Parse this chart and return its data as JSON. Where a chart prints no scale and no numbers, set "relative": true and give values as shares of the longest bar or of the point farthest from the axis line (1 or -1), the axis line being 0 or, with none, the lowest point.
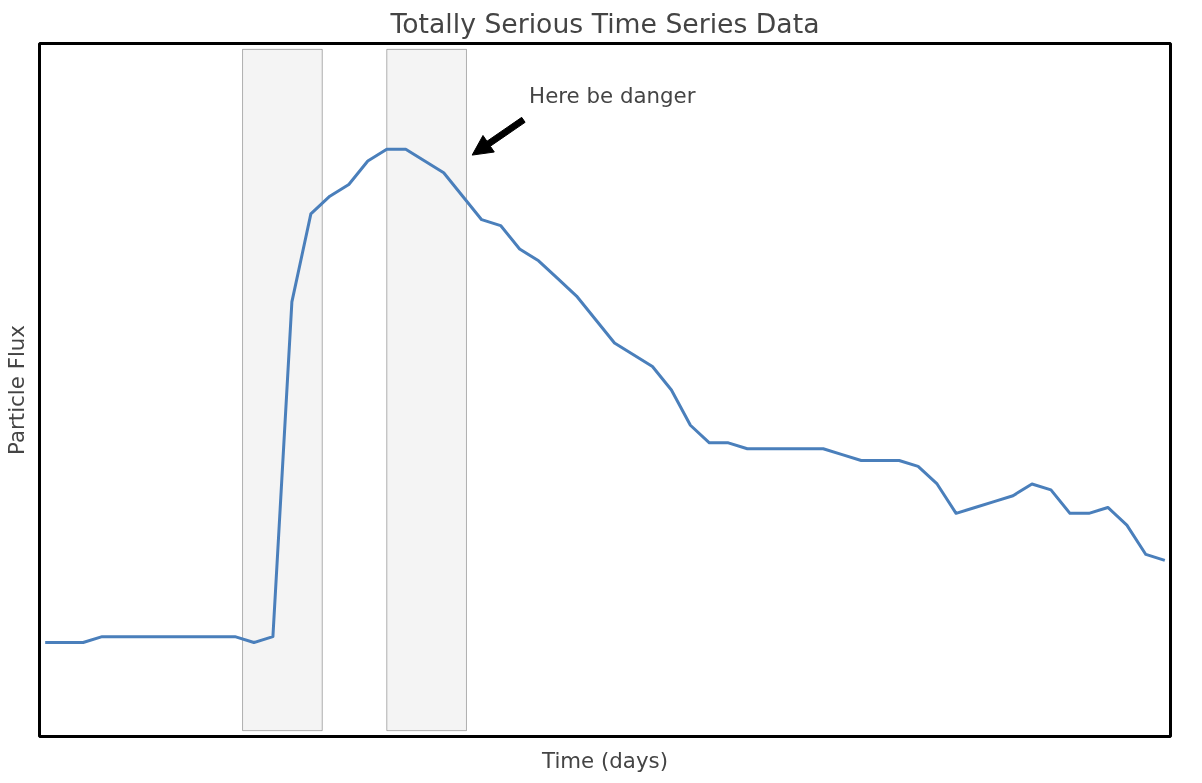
{
  "chart_data": {
    "type": "line",
    "title": "Totally Serious Time Series Data",
    "xlabel": "Time (days)",
    "ylabel": "Particle Flux",
    "relative": true,
    "tick_labels": false,
    "grid": false,
    "marker": "none",
    "line_style": "solid",
    "categories": [
      null,
      null,
      null,
      null,
      null,
      null,
      null,
      null,
      null,
      null,
      null,
      null,
      null,
      null,
      null,
      null,
      null,
      null,
      null,
      null,
      null,
      null,
      null,
      null,
      null,
      null,
      null,
      null,
      null,
      null,
      null,
      null,
      null,
      null,
      null,
      null,
      null,
      null,
      null,
      null,
      null,
      null,
      null,
      null,
      null,
      null,
      null,
      null,
      null,
      null,
      null,
      null,
      null,
      null,
      null,
      null,
      null,
      null,
      null,
      null
    ],
    "series": [
      {
        "color": "#4a7fbb",
        "values": [
          0.16,
          0.16,
          0.16,
          0.17,
          0.17,
          0.17,
          0.17,
          0.17,
          0.17,
          0.17,
          0.17,
          0.16,
          0.17,
          0.74,
          0.89,
          0.92,
          0.94,
          0.98,
          1.0,
          1.0,
          0.98,
          0.96,
          0.92,
          0.88,
          0.87,
          0.83,
          0.81,
          0.78,
          0.75,
          0.71,
          0.67,
          0.65,
          0.63,
          0.59,
          0.53,
          0.5,
          0.5,
          0.49,
          0.49,
          0.49,
          0.49,
          0.49,
          0.48,
          0.47,
          0.47,
          0.47,
          0.46,
          0.43,
          0.38,
          0.39,
          0.4,
          0.41,
          0.43,
          0.42,
          0.38,
          0.38,
          0.39,
          0.36,
          0.31,
          0.3
        ]
      }
    ],
    "annotations": [
      "Here be danger"
    ]
  }
}
